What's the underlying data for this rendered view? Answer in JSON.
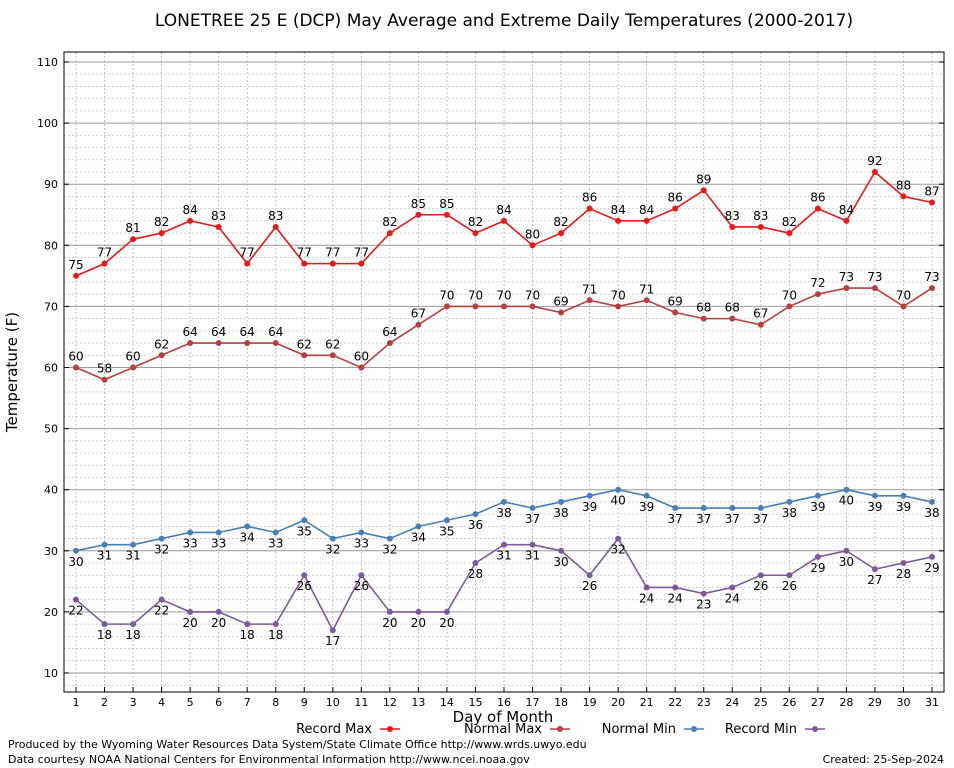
{
  "chart_data": {
    "type": "line",
    "title": "LONETREE 25 E (DCP) May Average and Extreme Daily Temperatures (2000-2017)",
    "xlabel": "Day of Month",
    "ylabel": "Temperature (F)",
    "xlim": [
      1,
      31
    ],
    "ylim": [
      10,
      110
    ],
    "y_major_ticks": [
      10,
      20,
      30,
      40,
      50,
      60,
      70,
      80,
      90,
      100,
      110
    ],
    "y_minor_step": 2,
    "grid": true,
    "legend_position": "bottom",
    "x": [
      1,
      2,
      3,
      4,
      5,
      6,
      7,
      8,
      9,
      10,
      11,
      12,
      13,
      14,
      15,
      16,
      17,
      18,
      19,
      20,
      21,
      22,
      23,
      24,
      25,
      26,
      27,
      28,
      29,
      30,
      31
    ],
    "series": [
      {
        "name": "Record Max",
        "color": "#e41a1c",
        "label_position": "above",
        "values": [
          75,
          77,
          81,
          82,
          84,
          83,
          77,
          83,
          77,
          77,
          77,
          82,
          85,
          85,
          82,
          84,
          80,
          82,
          86,
          84,
          84,
          86,
          89,
          83,
          83,
          82,
          86,
          84,
          92,
          88,
          87
        ]
      },
      {
        "name": "Normal Max",
        "color": "#b5413e",
        "label_position": "above",
        "values": [
          60,
          58,
          60,
          62,
          64,
          64,
          64,
          64,
          62,
          62,
          60,
          64,
          67,
          70,
          70,
          70,
          70,
          69,
          71,
          70,
          71,
          69,
          68,
          68,
          67,
          70,
          72,
          73,
          73,
          70,
          73
        ]
      },
      {
        "name": "Normal Min",
        "color": "#4a7fb5",
        "label_position": "below",
        "values": [
          30,
          31,
          31,
          32,
          33,
          33,
          34,
          33,
          35,
          32,
          33,
          32,
          34,
          35,
          36,
          38,
          37,
          38,
          39,
          40,
          39,
          37,
          37,
          37,
          37,
          38,
          39,
          40,
          39,
          39,
          38
        ]
      },
      {
        "name": "Record Min",
        "color": "#7e5a9b",
        "label_position": "below",
        "values": [
          22,
          18,
          18,
          22,
          20,
          20,
          18,
          18,
          26,
          17,
          26,
          20,
          20,
          20,
          28,
          31,
          31,
          30,
          26,
          32,
          24,
          24,
          23,
          24,
          26,
          26,
          29,
          30,
          27,
          28,
          29
        ]
      }
    ]
  },
  "footer": {
    "credit_line1": "Produced by the Wyoming Water Resources Data System/State Climate Office http://www.wrds.uwyo.edu",
    "credit_line2": "Data courtesy NOAA National Centers for Environmental Information http://www.ncei.noaa.gov",
    "created": "Created:  25-Sep-2024"
  }
}
